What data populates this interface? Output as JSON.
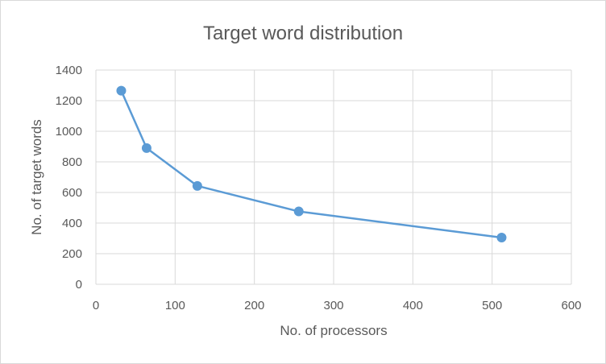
{
  "chart_data": {
    "type": "scatter",
    "title": "Target word distribution",
    "xlabel": "No. of processors",
    "ylabel": "No. of target words",
    "xlim": [
      0,
      600
    ],
    "ylim": [
      0,
      1400
    ],
    "x_ticks": [
      "0",
      "100",
      "200",
      "300",
      "400",
      "500",
      "600"
    ],
    "y_ticks": [
      "0",
      "200",
      "400",
      "600",
      "800",
      "1000",
      "1200",
      "1400"
    ],
    "grid": true,
    "legend": "none",
    "series": [
      {
        "color": "#5b9bd5",
        "points": [
          {
            "x": 32,
            "y": 1265
          },
          {
            "x": 64,
            "y": 890
          },
          {
            "x": 128,
            "y": 643
          },
          {
            "x": 256,
            "y": 476
          },
          {
            "x": 512,
            "y": 305
          }
        ]
      }
    ]
  }
}
